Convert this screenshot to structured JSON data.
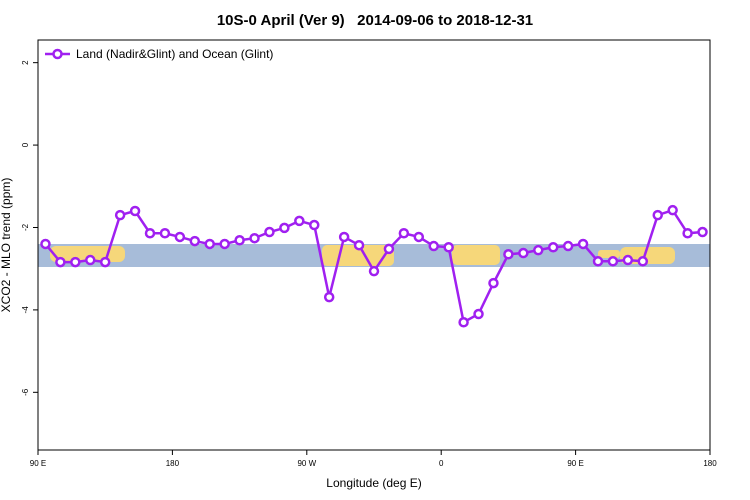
{
  "chart_data": {
    "type": "line",
    "title": "10S-0 April (Ver 9)   2014-09-06 to 2018-12-31",
    "x_label": "Longitude (deg E)",
    "y_label": "XCO2 - MLO trend (ppm)",
    "x": [
      95,
      105,
      115,
      125,
      135,
      145,
      155,
      165,
      175,
      185,
      195,
      205,
      215,
      225,
      235,
      245,
      255,
      265,
      275,
      285,
      295,
      305,
      315,
      325,
      335,
      345,
      355,
      365,
      375,
      385,
      395,
      405,
      415,
      425,
      435,
      445,
      455,
      465,
      475,
      485,
      495,
      505,
      515,
      525,
      535
    ],
    "series": [
      {
        "name": "Land (Nadir&Glint) and Ocean (Glint)",
        "color": "#a020f0",
        "values": [
          -2.4,
          -2.84,
          -2.84,
          -2.79,
          -2.84,
          -1.7,
          -1.6,
          -2.14,
          -2.14,
          -2.23,
          -2.33,
          -2.4,
          -2.4,
          -2.31,
          -2.26,
          -2.11,
          -2.01,
          -1.84,
          -1.94,
          -3.69,
          -2.23,
          -2.43,
          -3.06,
          -2.52,
          -2.14,
          -2.23,
          -2.45,
          -2.48,
          -4.3,
          -4.1,
          -3.35,
          -2.65,
          -2.62,
          -2.55,
          -2.48,
          -2.45,
          -2.4,
          -2.82,
          -2.82,
          -2.79,
          -2.82,
          -1.7,
          -1.58,
          -2.14,
          -2.11
        ]
      }
    ],
    "xlim": [
      90,
      540
    ],
    "ylim": [
      -7.4,
      2.55
    ],
    "xticks": [
      {
        "value": 90,
        "label": "90 E"
      },
      180,
      {
        "value": 270,
        "label": "90 W"
      },
      {
        "value": 360,
        "label": "0"
      },
      {
        "value": 450,
        "label": "90 E"
      },
      {
        "value": 540,
        "label": "180"
      }
    ],
    "yticks": [
      -6,
      -4,
      -2,
      0,
      2
    ],
    "legend": "top-left"
  }
}
